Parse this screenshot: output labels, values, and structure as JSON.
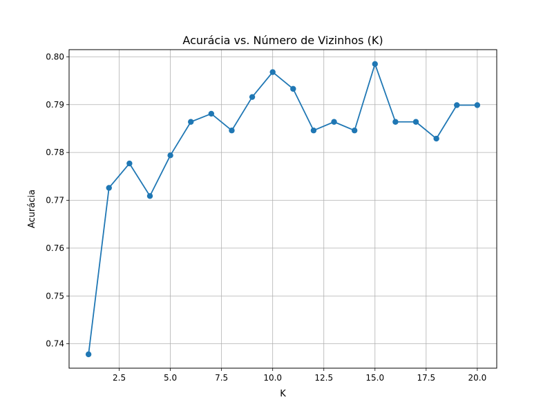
{
  "chart_data": {
    "type": "line",
    "title": "Acurácia vs. Número de Vizinhos (K)",
    "xlabel": "K",
    "ylabel": "Acurácia",
    "xlim": [
      0.05,
      20.95
    ],
    "ylim": [
      0.7349,
      0.8015
    ],
    "xticks": [
      2.5,
      5.0,
      7.5,
      10.0,
      12.5,
      15.0,
      17.5,
      20.0
    ],
    "xtick_labels": [
      "2.5",
      "5.0",
      "7.5",
      "10.0",
      "12.5",
      "15.0",
      "17.5",
      "20.0"
    ],
    "yticks": [
      0.74,
      0.75,
      0.76,
      0.77,
      0.78,
      0.79,
      0.8
    ],
    "ytick_labels": [
      "0.74",
      "0.75",
      "0.76",
      "0.77",
      "0.78",
      "0.79",
      "0.80"
    ],
    "grid": true,
    "marker": "circle",
    "color": "#1f77b4",
    "series": [
      {
        "x": [
          1,
          2,
          3,
          4,
          5,
          6,
          7,
          8,
          9,
          10,
          11,
          12,
          13,
          14,
          15,
          16,
          17,
          18,
          19,
          20
        ],
        "values": [
          0.7378,
          0.7726,
          0.7777,
          0.7709,
          0.7794,
          0.7864,
          0.7881,
          0.7846,
          0.7916,
          0.7968,
          0.7933,
          0.7846,
          0.7864,
          0.7846,
          0.7985,
          0.7864,
          0.7864,
          0.7829,
          0.7899,
          0.7899
        ]
      }
    ]
  }
}
